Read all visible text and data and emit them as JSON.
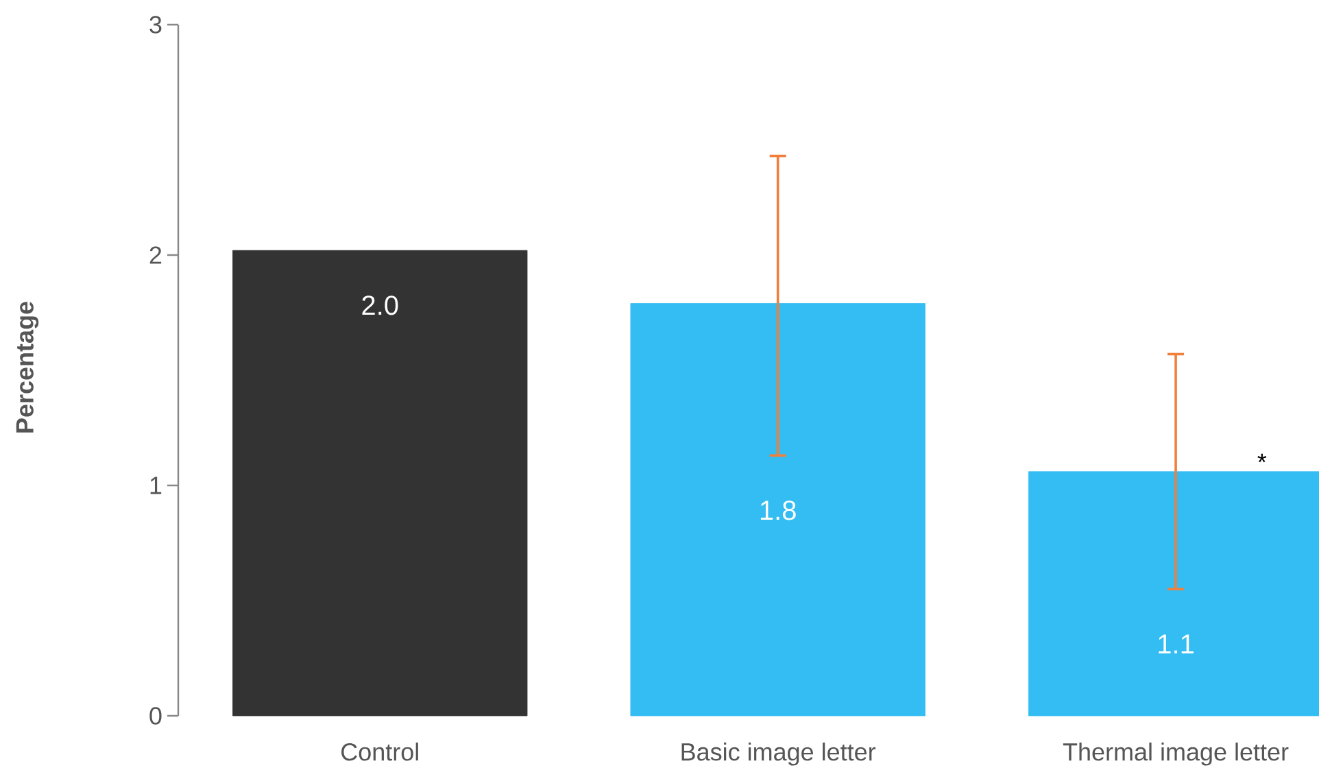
{
  "chart_data": {
    "type": "bar",
    "ylabel": "Percentage",
    "categories": [
      "Control",
      "Basic image letter",
      "Thermal image letter"
    ],
    "values": [
      2.02,
      1.79,
      1.06
    ],
    "colors": [
      "#333333",
      "#33bdf2",
      "#33bdf2"
    ],
    "errors": [
      null,
      [
        1.13,
        2.43
      ],
      [
        0.55,
        1.57
      ]
    ],
    "value_labels": [
      "2.0",
      "1.8",
      "1.1"
    ],
    "ylim": [
      0,
      3
    ],
    "yticks": [
      0,
      1,
      2,
      3
    ],
    "annotations": [
      "*"
    ]
  }
}
